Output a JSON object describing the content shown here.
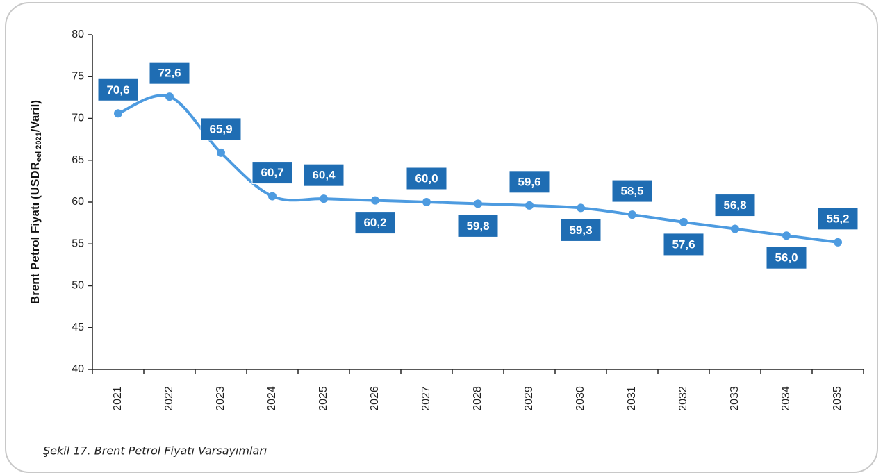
{
  "chart_data": {
    "type": "line",
    "caption": "Şekil 17. Brent Petrol Fiyatı Varsayımları",
    "ylabel": [
      "Brent Petrol Fiyatı (USDR",
      "eel 2021",
      "/Varil)"
    ],
    "categories": [
      "2021",
      "2022",
      "2023",
      "2024",
      "2025",
      "2026",
      "2027",
      "2028",
      "2029",
      "2030",
      "2031",
      "2032",
      "2033",
      "2034",
      "2035"
    ],
    "values": [
      70.6,
      72.6,
      65.9,
      60.7,
      60.4,
      60.2,
      60.0,
      59.8,
      59.6,
      59.3,
      58.5,
      57.6,
      56.8,
      56.0,
      55.2
    ],
    "value_labels": [
      "70,6",
      "72,6",
      "65,9",
      "60,7",
      "60,4",
      "60,2",
      "60,0",
      "59,8",
      "59,6",
      "59,3",
      "58,5",
      "57,6",
      "56,8",
      "56,0",
      "55,2"
    ],
    "color": "#4d9be0",
    "label_color": "#1f6db3",
    "ylim": [
      40,
      80
    ],
    "yticks": [
      40,
      45,
      50,
      55,
      60,
      65,
      70,
      75,
      80
    ]
  }
}
